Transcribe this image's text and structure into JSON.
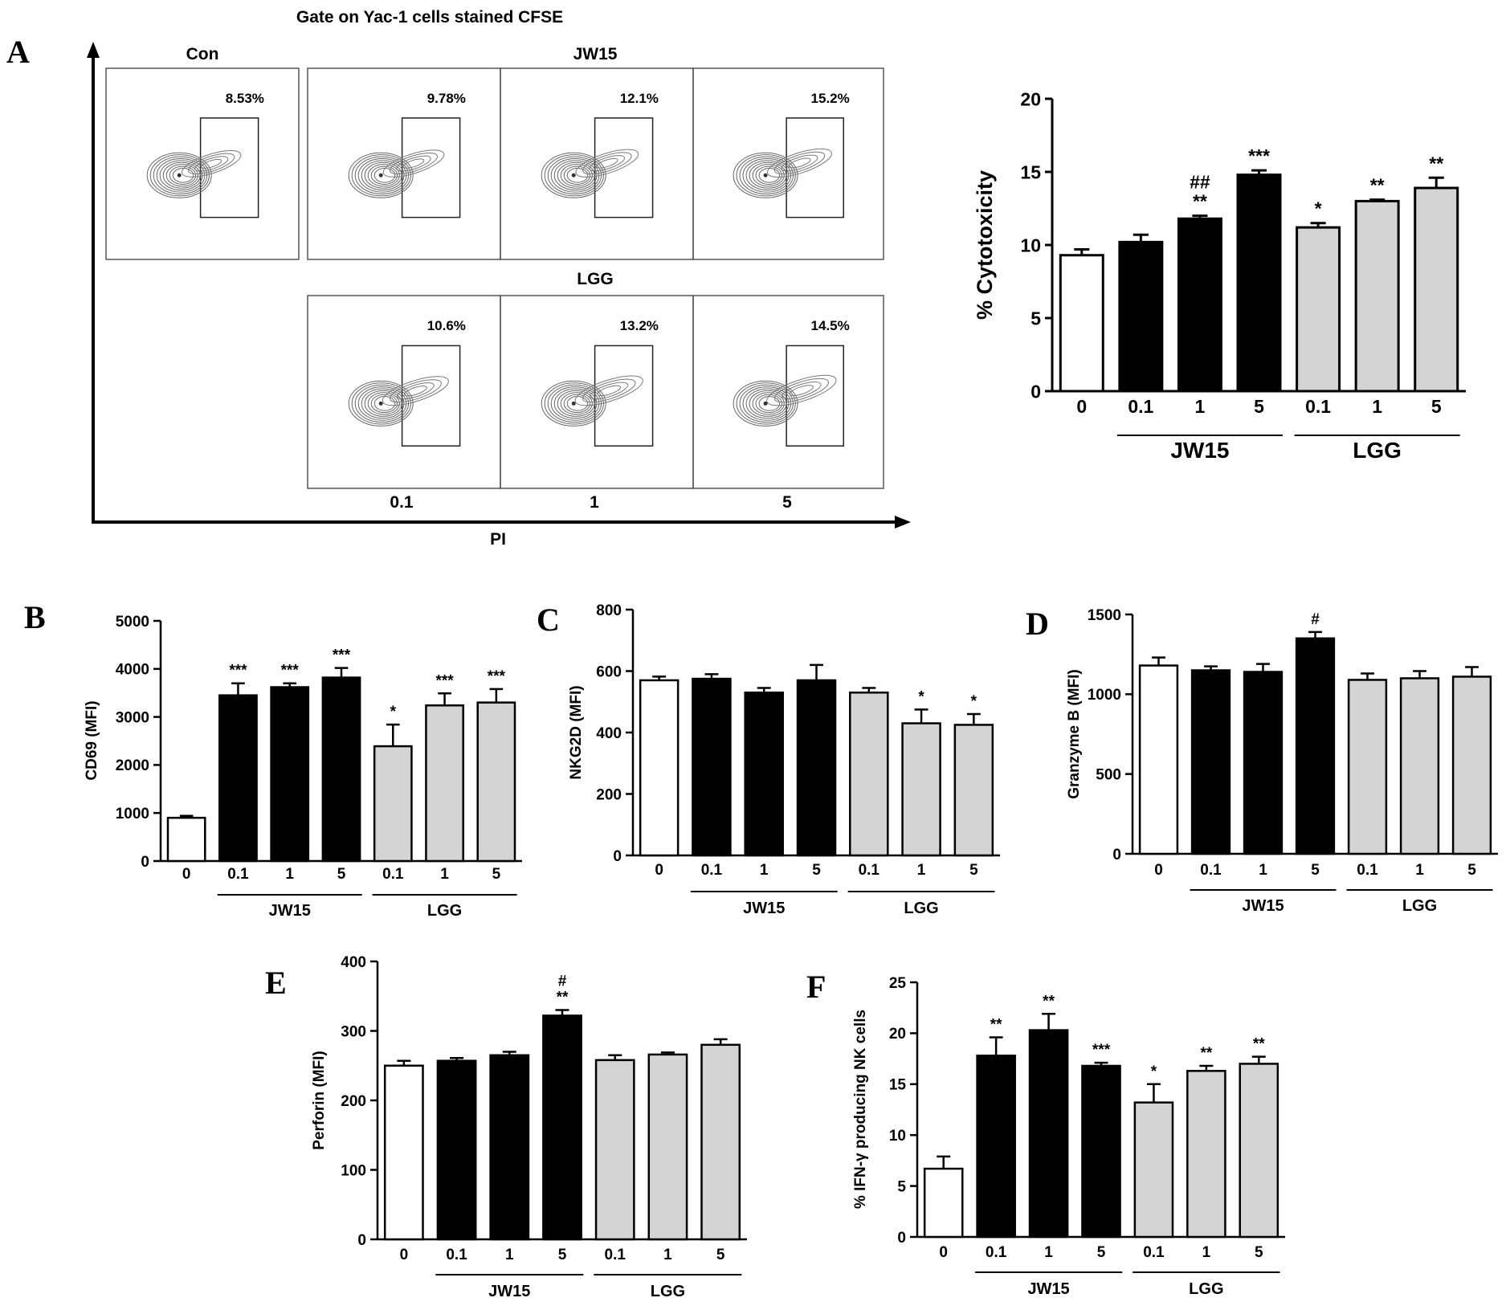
{
  "flow": {
    "title": "Gate on Yac-1 cells stained CFSE",
    "x_axis_label": "PI",
    "con_label": "Con",
    "jw15_label": "JW15",
    "lgg_label": "LGG",
    "dose_labels": [
      "0.1",
      "1",
      "5"
    ],
    "panels": [
      {
        "group": "Con",
        "dose": "0",
        "pct": "8.53%"
      },
      {
        "group": "JW15",
        "dose": "0.1",
        "pct": "9.78%"
      },
      {
        "group": "JW15",
        "dose": "1",
        "pct": "12.1%"
      },
      {
        "group": "JW15",
        "dose": "5",
        "pct": "15.2%"
      },
      {
        "group": "LGG",
        "dose": "0.1",
        "pct": "10.6%"
      },
      {
        "group": "LGG",
        "dose": "1",
        "pct": "13.2%"
      },
      {
        "group": "LGG",
        "dose": "5",
        "pct": "14.5%"
      }
    ]
  },
  "colors": {
    "control": "#ffffff",
    "jw15": "#000000",
    "lgg": "#d4d4d4",
    "axis": "#000000"
  },
  "chart_data": [
    {
      "panel": "A",
      "type": "bar",
      "ylabel": "% Cytotoxicity",
      "ylim": [
        0,
        20
      ],
      "yticks": [
        0,
        5,
        10,
        15,
        20
      ],
      "categories": [
        "0",
        "0.1",
        "1",
        "5",
        "0.1",
        "1",
        "5"
      ],
      "groups": [
        "control",
        "jw15",
        "jw15",
        "jw15",
        "lgg",
        "lgg",
        "lgg"
      ],
      "group_labels": [
        "JW15",
        "LGG"
      ],
      "values": [
        9.3,
        10.2,
        11.8,
        14.8,
        11.2,
        13.0,
        13.9
      ],
      "errors": [
        0.4,
        0.5,
        0.2,
        0.3,
        0.3,
        0.1,
        0.7
      ],
      "annotations": [
        [],
        [],
        [
          "**",
          "##"
        ],
        [
          "***"
        ],
        [
          "*"
        ],
        [
          "**"
        ],
        [
          "**"
        ]
      ]
    },
    {
      "panel": "B",
      "type": "bar",
      "ylabel": "CD69 (MFI)",
      "ylim": [
        0,
        5000
      ],
      "yticks": [
        0,
        1000,
        2000,
        3000,
        4000,
        5000
      ],
      "categories": [
        "0",
        "0.1",
        "1",
        "5",
        "0.1",
        "1",
        "5"
      ],
      "groups": [
        "control",
        "jw15",
        "jw15",
        "jw15",
        "lgg",
        "lgg",
        "lgg"
      ],
      "group_labels": [
        "JW15",
        "LGG"
      ],
      "values": [
        900,
        3450,
        3620,
        3820,
        2390,
        3240,
        3300
      ],
      "errors": [
        40,
        250,
        80,
        200,
        450,
        250,
        280
      ],
      "annotations": [
        [],
        [
          "***"
        ],
        [
          "***"
        ],
        [
          "***"
        ],
        [
          "*"
        ],
        [
          "***"
        ],
        [
          "***"
        ]
      ]
    },
    {
      "panel": "C",
      "type": "bar",
      "ylabel": "NKG2D (MFI)",
      "ylim": [
        0,
        800
      ],
      "yticks": [
        0,
        200,
        400,
        600,
        800
      ],
      "categories": [
        "0",
        "0.1",
        "1",
        "5",
        "0.1",
        "1",
        "5"
      ],
      "groups": [
        "control",
        "jw15",
        "jw15",
        "jw15",
        "lgg",
        "lgg",
        "lgg"
      ],
      "group_labels": [
        "JW15",
        "LGG"
      ],
      "values": [
        570,
        575,
        530,
        570,
        530,
        430,
        425
      ],
      "errors": [
        12,
        15,
        15,
        50,
        15,
        45,
        35
      ],
      "annotations": [
        [],
        [],
        [],
        [],
        [],
        [
          "*"
        ],
        [
          "*"
        ]
      ]
    },
    {
      "panel": "D",
      "type": "bar",
      "ylabel": "Granzyme B (MFI)",
      "ylim": [
        0,
        1500
      ],
      "yticks": [
        0,
        500,
        1000,
        1500
      ],
      "categories": [
        "0",
        "0.1",
        "1",
        "5",
        "0.1",
        "1",
        "5"
      ],
      "groups": [
        "control",
        "jw15",
        "jw15",
        "jw15",
        "lgg",
        "lgg",
        "lgg"
      ],
      "group_labels": [
        "JW15",
        "LGG"
      ],
      "values": [
        1180,
        1150,
        1140,
        1350,
        1090,
        1100,
        1110
      ],
      "errors": [
        50,
        25,
        50,
        40,
        40,
        45,
        60
      ],
      "annotations": [
        [],
        [],
        [],
        [
          "#"
        ],
        [],
        [],
        []
      ]
    },
    {
      "panel": "E",
      "type": "bar",
      "ylabel": "Perforin (MFI)",
      "ylim": [
        0,
        400
      ],
      "yticks": [
        0,
        100,
        200,
        300,
        400
      ],
      "categories": [
        "0",
        "0.1",
        "1",
        "5",
        "0.1",
        "1",
        "5"
      ],
      "groups": [
        "control",
        "jw15",
        "jw15",
        "jw15",
        "lgg",
        "lgg",
        "lgg"
      ],
      "group_labels": [
        "JW15",
        "LGG"
      ],
      "values": [
        250,
        257,
        265,
        322,
        258,
        266,
        280
      ],
      "errors": [
        7,
        4,
        5,
        8,
        7,
        3,
        8
      ],
      "annotations": [
        [],
        [],
        [],
        [
          "**",
          "#"
        ],
        [],
        [],
        []
      ]
    },
    {
      "panel": "F",
      "type": "bar",
      "ylabel": "% IFN-γ producing NK cells",
      "ylim": [
        0,
        25
      ],
      "yticks": [
        0,
        5,
        10,
        15,
        20,
        25
      ],
      "categories": [
        "0",
        "0.1",
        "1",
        "5",
        "0.1",
        "1",
        "5"
      ],
      "groups": [
        "control",
        "jw15",
        "jw15",
        "jw15",
        "lgg",
        "lgg",
        "lgg"
      ],
      "group_labels": [
        "JW15",
        "LGG"
      ],
      "values": [
        6.7,
        17.8,
        20.3,
        16.8,
        13.2,
        16.3,
        17.0
      ],
      "errors": [
        1.2,
        1.8,
        1.6,
        0.3,
        1.8,
        0.5,
        0.7
      ],
      "annotations": [
        [],
        [
          "**"
        ],
        [
          "**"
        ],
        [
          "***"
        ],
        [
          "*"
        ],
        [
          "**"
        ],
        [
          "**"
        ]
      ]
    }
  ]
}
